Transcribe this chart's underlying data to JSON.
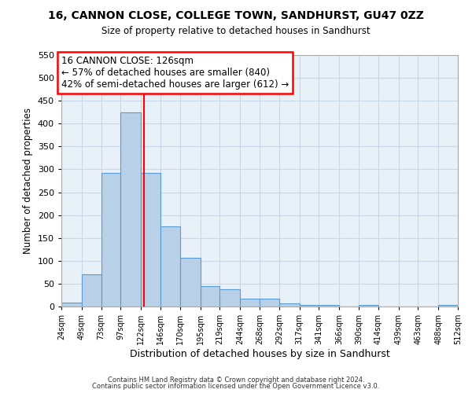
{
  "title": "16, CANNON CLOSE, COLLEGE TOWN, SANDHURST, GU47 0ZZ",
  "subtitle": "Size of property relative to detached houses in Sandhurst",
  "xlabel": "Distribution of detached houses by size in Sandhurst",
  "ylabel": "Number of detached properties",
  "bar_values": [
    8,
    70,
    292,
    425,
    292,
    175,
    106,
    44,
    38,
    18,
    18,
    7,
    4,
    4,
    0,
    3,
    0,
    0,
    0,
    4
  ],
  "bin_edges": [
    24,
    49,
    73,
    97,
    122,
    146,
    170,
    195,
    219,
    244,
    268,
    292,
    317,
    341,
    366,
    390,
    414,
    439,
    463,
    488,
    512
  ],
  "tick_labels": [
    "24sqm",
    "49sqm",
    "73sqm",
    "97sqm",
    "122sqm",
    "146sqm",
    "170sqm",
    "195sqm",
    "219sqm",
    "244sqm",
    "268sqm",
    "292sqm",
    "317sqm",
    "341sqm",
    "366sqm",
    "390sqm",
    "414sqm",
    "439sqm",
    "463sqm",
    "488sqm",
    "512sqm"
  ],
  "vline_x": 126,
  "bar_color": "#b8d0e8",
  "bar_edge_color": "#5b9bd5",
  "annotation_title": "16 CANNON CLOSE: 126sqm",
  "annotation_line1": "← 57% of detached houses are smaller (840)",
  "annotation_line2": "42% of semi-detached houses are larger (612) →",
  "ylim": [
    0,
    550
  ],
  "yticks": [
    0,
    50,
    100,
    150,
    200,
    250,
    300,
    350,
    400,
    450,
    500,
    550
  ],
  "grid_color": "#c8d8e8",
  "footer1": "Contains HM Land Registry data © Crown copyright and database right 2024.",
  "footer2": "Contains public sector information licensed under the Open Government Licence v3.0.",
  "background_color": "#e8f0f8"
}
